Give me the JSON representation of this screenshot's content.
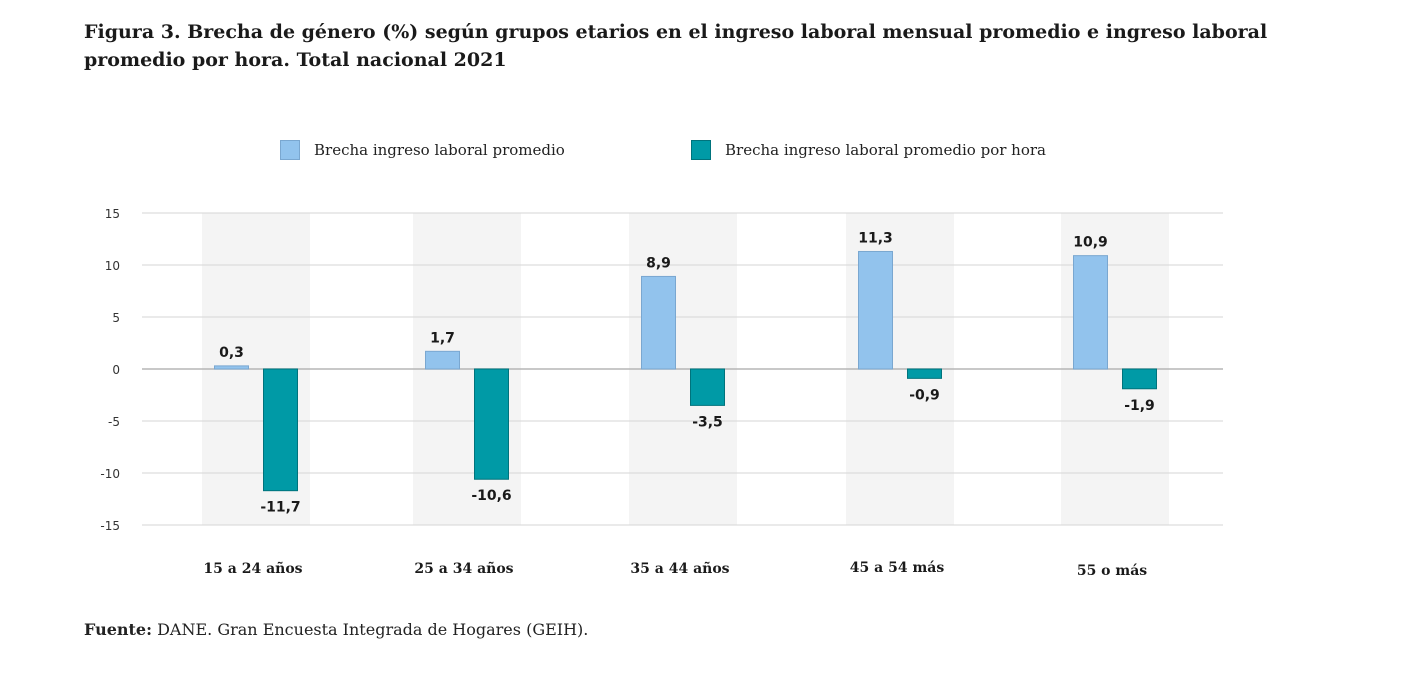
{
  "title": "Figura 3. Brecha de género (%) según grupos etarios en el ingreso laboral mensual promedio e ingreso laboral promedio por hora. Total nacional 2021",
  "legend": [
    {
      "label": "Brecha ingreso laboral promedio",
      "color": "#92c3ed"
    },
    {
      "label": "Brecha ingreso laboral promedio por hora",
      "color": "#009aa6"
    }
  ],
  "source": {
    "label": "Fuente:",
    "text": "DANE. Gran Encuesta Integrada de Hogares (GEIH)."
  },
  "chart_data": {
    "type": "bar",
    "title": "Figura 3. Brecha de género (%) según grupos etarios en el ingreso laboral mensual promedio e ingreso laboral promedio por hora. Total nacional 2021",
    "xlabel": "",
    "ylabel": "",
    "categories": [
      "15 a 24 años",
      "25 a 34 años",
      "35 a 44 años",
      "45 a 54 más",
      "55 o más"
    ],
    "series": [
      {
        "name": "Brecha ingreso laboral promedio",
        "color": "#92c3ed",
        "values": [
          0.3,
          1.7,
          8.9,
          11.3,
          10.9
        ],
        "labels": [
          "0,3",
          "1,7",
          "8,9",
          "11,3",
          "10,9"
        ]
      },
      {
        "name": "Brecha ingreso laboral promedio por hora",
        "color": "#009aa6",
        "values": [
          -11.7,
          -10.6,
          -3.5,
          -0.9,
          -1.9
        ],
        "labels": [
          "-11,7",
          "-10,6",
          "-3,5",
          "-0,9",
          "-1,9"
        ]
      }
    ],
    "ylim": [
      -15,
      15
    ],
    "yticks": [
      15,
      10,
      5,
      0,
      -5,
      -10,
      -15
    ],
    "grid": true,
    "legend_position": "top-center"
  }
}
